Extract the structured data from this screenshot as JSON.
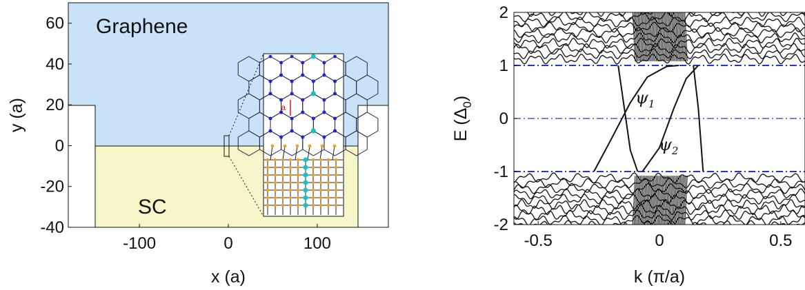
{
  "chart_data": [
    {
      "type": "diagram",
      "xlabel": "x (a)",
      "ylabel": "y (a)",
      "xlim": [
        -180,
        180
      ],
      "ylim": [
        -40,
        70
      ],
      "xticks": [
        -100,
        0,
        100
      ],
      "yticks": [
        -40,
        -20,
        0,
        20,
        40,
        60
      ],
      "xtick_labels": [
        "-100",
        "0",
        "100"
      ],
      "ytick_labels": [
        "-40",
        "-20",
        "0",
        "20",
        "40",
        "60"
      ],
      "regions": [
        {
          "label": "Graphene",
          "color": "#c9e2f7"
        },
        {
          "label": "SC",
          "color": "#f7f6c8"
        }
      ],
      "inset_label": "a"
    },
    {
      "type": "line",
      "xlabel": "k (π/a)",
      "ylabel": "E (Δ0)",
      "ylabel_main": "E (Δ",
      "ylabel_sub": "0",
      "ylabel_close": ")",
      "xlim": [
        -0.6,
        0.6
      ],
      "ylim": [
        -2,
        2
      ],
      "xticks": [
        -0.5,
        0,
        0.5
      ],
      "yticks": [
        -2,
        -1,
        0,
        1,
        2
      ],
      "xtick_labels": [
        "-0.5",
        "0",
        "0.5"
      ],
      "ytick_labels": [
        "-2",
        "-1",
        "0",
        "1",
        "2"
      ],
      "hlines": [
        1,
        0,
        -1
      ],
      "state_labels": [
        {
          "main": "ψ",
          "sub": "1"
        },
        {
          "main": "ψ",
          "sub": "2"
        }
      ],
      "series": [
        {
          "values": [
            [
              -0.27,
              -1.0
            ],
            [
              -0.2,
              -0.4
            ],
            [
              -0.12,
              0.3
            ],
            [
              -0.05,
              0.78
            ],
            [
              0.03,
              0.98
            ],
            [
              0.08,
              1.0
            ]
          ]
        },
        {
          "values": [
            [
              -0.07,
              -1.0
            ],
            [
              0.0,
              -0.55
            ],
            [
              0.06,
              0.2
            ],
            [
              0.11,
              0.75
            ],
            [
              0.16,
              1.0
            ]
          ]
        },
        {
          "values": [
            [
              -0.17,
              1.0
            ],
            [
              -0.12,
              -0.6
            ],
            [
              -0.09,
              -1.0
            ]
          ]
        },
        {
          "values": [
            [
              0.14,
              1.0
            ],
            [
              0.16,
              0.2
            ],
            [
              0.18,
              -1.0
            ]
          ]
        }
      ],
      "colors": {
        "band": "#111111",
        "gap_line": "#2233dd"
      }
    }
  ]
}
